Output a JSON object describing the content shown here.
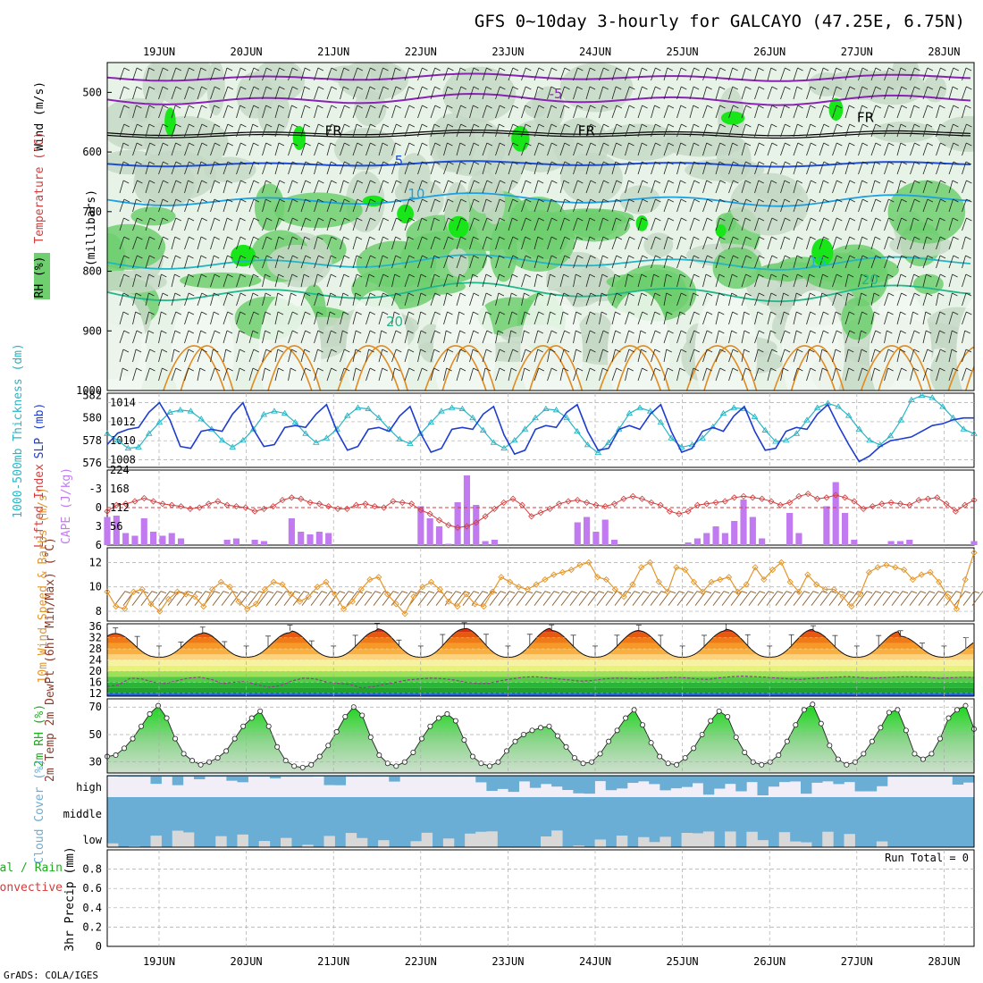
{
  "header": {
    "title": "GFS 0~10day 3-hourly for GALCAYO (47.25E, 6.75N)",
    "credit": "GrADS: COLA/IGES"
  },
  "colors": {
    "rh_light": "#e8f3e8",
    "rh_mid": "#c5d8c5",
    "rh_green": "#6fcf6f",
    "rh_bright": "#19e619",
    "thickness": "#2ab5c5",
    "slp": "#1e3ccf",
    "cape": "#c27af0",
    "lifted": "#d23c3c",
    "wind10": "#e3962c",
    "barb": "#8a5a2a",
    "dewpt": "#9a3a8a",
    "rh2m": "#22cc22",
    "cloud": "#6aaed6",
    "iso_5": "#8a22b5",
    "iso_fr": "#000000",
    "iso_m5": "#1e4fd6",
    "iso_m10": "#1fa0e0",
    "iso_m15": "#22b5c8",
    "iso_m20": "#1fb88a",
    "iso_m25": "#e08a1f"
  },
  "chart_data": [
    {
      "type": "heatmap",
      "name": "upper-air",
      "ylabel": "(millibars)",
      "legend": [
        "RH (%)",
        "Temperature (°C)",
        "Wind (m/s)"
      ],
      "y_ticks": [
        500,
        600,
        700,
        800,
        900,
        1000
      ],
      "ylim": [
        450,
        1000
      ],
      "x_ticks": [
        "19JUN",
        "20JUN",
        "21JUN",
        "22JUN",
        "23JUN",
        "24JUN",
        "25JUN",
        "26JUN",
        "27JUN",
        "28JUN"
      ],
      "isotherm_labels": [
        {
          "text": "-5",
          "x": 4.55,
          "y": 510,
          "color_key": "iso_5"
        },
        {
          "text": "FR",
          "x": 2.0,
          "y": 572,
          "color_key": "iso_fr"
        },
        {
          "text": "FR",
          "x": 4.9,
          "y": 572,
          "color_key": "iso_fr"
        },
        {
          "text": "FR",
          "x": 8.1,
          "y": 550,
          "color_key": "iso_fr"
        },
        {
          "text": "5",
          "x": 2.75,
          "y": 622,
          "color_key": "iso_m5"
        },
        {
          "text": "10",
          "x": 2.95,
          "y": 678,
          "color_key": "iso_m10"
        },
        {
          "text": "15",
          "x": 7.55,
          "y": 792,
          "color_key": "iso_m15"
        },
        {
          "text": "20",
          "x": 2.7,
          "y": 892,
          "color_key": "iso_m20"
        },
        {
          "text": "20",
          "x": 8.15,
          "y": 822,
          "color_key": "iso_m20"
        }
      ]
    },
    {
      "type": "line",
      "name": "thickness-slp",
      "ylabel_left": "1000-500mb Thickness (dm)",
      "ylabel_right": "SLP (mb)",
      "left_ticks": [
        576,
        578,
        580,
        582
      ],
      "right_ticks": [
        1008,
        1010,
        1012,
        1014
      ],
      "left_lim": [
        575.6,
        582.2
      ],
      "right_lim": [
        1007.2,
        1015
      ],
      "thickness": [
        578.6,
        578.0,
        577.3,
        577.4,
        578.6,
        579.6,
        580.5,
        580.7,
        580.6,
        579.9,
        579.0,
        578.0,
        577.4,
        578.0,
        579.0,
        580.3,
        580.6,
        580.4,
        579.6,
        578.6,
        577.8,
        578.2,
        579.0,
        580.2,
        580.9,
        580.8,
        580.0,
        579.0,
        578.1,
        577.7,
        578.6,
        579.6,
        580.6,
        580.9,
        580.8,
        580.0,
        578.9,
        577.8,
        577.3,
        578.0,
        579.0,
        580.0,
        580.8,
        580.7,
        580.0,
        578.8,
        577.6,
        576.9,
        577.8,
        579.0,
        580.4,
        580.9,
        580.6,
        579.6,
        578.2,
        577.4,
        577.6,
        578.2,
        579.2,
        580.4,
        580.9,
        580.8,
        580.1,
        578.9,
        577.9,
        578.0,
        578.6,
        579.8,
        580.9,
        581.3,
        581.0,
        580.2,
        579.0,
        578.0,
        577.6,
        578.4,
        579.8,
        581.6,
        582.0,
        581.8,
        581.0,
        580.0,
        579.0,
        578.6
      ],
      "slp": [
        1009.6,
        1010.8,
        1011.2,
        1011.4,
        1013.0,
        1014.0,
        1012.2,
        1009.4,
        1009.2,
        1011.0,
        1011.2,
        1011.0,
        1012.8,
        1014.0,
        1011.2,
        1009.4,
        1009.6,
        1011.4,
        1011.6,
        1011.4,
        1012.8,
        1013.8,
        1011.0,
        1009.0,
        1009.4,
        1011.2,
        1011.4,
        1011.0,
        1012.6,
        1013.6,
        1010.8,
        1008.8,
        1009.2,
        1011.2,
        1011.4,
        1011.2,
        1012.8,
        1013.6,
        1010.6,
        1008.6,
        1009.0,
        1011.2,
        1011.6,
        1011.4,
        1013.0,
        1013.8,
        1011.0,
        1009.0,
        1009.2,
        1011.2,
        1011.6,
        1011.2,
        1012.8,
        1013.8,
        1011.0,
        1008.8,
        1009.2,
        1011.0,
        1011.4,
        1011.0,
        1012.6,
        1013.6,
        1011.0,
        1009.0,
        1009.2,
        1011.0,
        1011.4,
        1011.2,
        1012.8,
        1013.8,
        1011.6,
        1009.6,
        1007.8,
        1008.4,
        1009.4,
        1010.0,
        1010.2,
        1010.4,
        1011.0,
        1011.6,
        1011.8,
        1012.2,
        1012.4,
        1012.4
      ]
    },
    {
      "type": "bar",
      "name": "cape-lifted",
      "ylabel_left": "Lifted Index",
      "ylabel_right": "CAPE (J/kg)",
      "lifted_ticks": [
        -3,
        0,
        3,
        6
      ],
      "lifted_lim": [
        6,
        -6
      ],
      "cape_ticks": [
        56,
        112,
        168,
        224
      ],
      "cape_lim": [
        0,
        224
      ],
      "cape": [
        84,
        88,
        36,
        28,
        80,
        40,
        28,
        36,
        20,
        0,
        0,
        0,
        0,
        16,
        20,
        0,
        16,
        12,
        0,
        0,
        80,
        40,
        32,
        40,
        36,
        0,
        0,
        0,
        0,
        0,
        0,
        0,
        0,
        0,
        116,
        80,
        56,
        4,
        128,
        208,
        120,
        12,
        16,
        0,
        0,
        0,
        0,
        0,
        0,
        0,
        0,
        68,
        84,
        40,
        76,
        16,
        0,
        0,
        0,
        0,
        0,
        0,
        0,
        8,
        20,
        36,
        56,
        36,
        72,
        136,
        84,
        20,
        0,
        0,
        96,
        36,
        0,
        0,
        116,
        188,
        96,
        16,
        0,
        0,
        0,
        12,
        12,
        16,
        0,
        0,
        0,
        0,
        0,
        0,
        12
      ],
      "lifted": [
        0.6,
        -0.4,
        -0.6,
        -1.0,
        -1.5,
        -1.0,
        -0.6,
        -0.4,
        -0.2,
        0.2,
        0.0,
        -0.6,
        -1.0,
        -0.4,
        -0.2,
        0.0,
        0.6,
        0.2,
        -0.2,
        -1.2,
        -1.6,
        -1.4,
        -0.8,
        -0.6,
        -0.2,
        0.2,
        0.2,
        -0.4,
        -0.6,
        -0.2,
        0.0,
        -1.0,
        -0.8,
        -0.6,
        0.4,
        1.0,
        2.0,
        2.8,
        3.2,
        3.0,
        2.4,
        1.4,
        0.2,
        -0.8,
        -1.4,
        -0.4,
        1.4,
        0.8,
        0.2,
        -0.6,
        -1.0,
        -1.2,
        -0.8,
        -0.4,
        -0.2,
        -0.6,
        -1.4,
        -1.8,
        -1.4,
        -0.8,
        -0.4,
        0.6,
        1.0,
        0.6,
        -0.4,
        -0.6,
        -0.8,
        -1.0,
        -1.6,
        -1.8,
        -1.6,
        -1.4,
        -1.0,
        -0.4,
        -0.8,
        -1.8,
        -2.2,
        -1.4,
        -1.6,
        -2.0,
        -1.6,
        -1.0,
        0.2,
        -0.2,
        -0.6,
        -0.8,
        -0.6,
        -0.4,
        -1.2,
        -1.4,
        -1.6,
        -0.6,
        0.6,
        -0.4,
        -1.2
      ]
    },
    {
      "type": "line",
      "name": "wind10m",
      "ylabel": "10m Wind Speed & Barbs (m/s)",
      "y_ticks": [
        8,
        10,
        12
      ],
      "ylim": [
        7.2,
        13.2
      ],
      "speed": [
        9.6,
        8.4,
        8.2,
        9.6,
        9.8,
        8.6,
        8.0,
        9.0,
        9.6,
        9.4,
        9.2,
        8.4,
        9.8,
        10.4,
        10.0,
        8.8,
        8.2,
        8.6,
        9.8,
        10.4,
        10.2,
        9.4,
        8.8,
        9.2,
        10.0,
        10.4,
        9.4,
        8.2,
        8.8,
        9.8,
        10.6,
        10.8,
        9.4,
        8.6,
        7.8,
        9.2,
        10.0,
        10.4,
        9.8,
        8.8,
        8.4,
        9.4,
        8.6,
        8.4,
        9.6,
        10.8,
        10.4,
        10.0,
        9.8,
        10.2,
        10.6,
        11.0,
        11.2,
        11.4,
        11.8,
        12.0,
        10.8,
        10.6,
        9.8,
        9.2,
        10.2,
        11.6,
        12.0,
        10.4,
        9.6,
        11.6,
        11.4,
        10.4,
        9.6,
        10.4,
        10.6,
        10.8,
        9.6,
        10.2,
        11.6,
        10.6,
        11.4,
        12.0,
        10.4,
        9.6,
        11.0,
        10.2,
        9.8,
        9.8,
        9.2,
        8.4,
        9.4,
        11.2,
        11.6,
        11.8,
        11.6,
        11.4,
        10.6,
        11.0,
        11.2,
        10.4,
        9.2,
        8.2,
        10.6,
        12.8
      ]
    },
    {
      "type": "area",
      "name": "temp2m",
      "ylabel": "2m Temp 2m DewPt (6hr Min/Max) (°C)",
      "y_ticks": [
        12,
        16,
        20,
        24,
        28,
        32,
        36
      ],
      "ylim": [
        11,
        37
      ],
      "temp_min": 25.0,
      "temp_max": [
        33.5,
        33.8,
        34.5,
        35.2,
        35.4,
        34.6,
        34.5,
        35.0,
        34.3,
        32.5
      ],
      "dewpoint": [
        14.5,
        15.0,
        17.5,
        17.2,
        16.0,
        15.5,
        16.5,
        17.5,
        17.8,
        17.0,
        15.5,
        16.0,
        16.2,
        15.0,
        14.2,
        14.8,
        16.5,
        17.5,
        17.2,
        16.0,
        15.6,
        15.2,
        14.0,
        14.4,
        15.2,
        16.0,
        16.8,
        17.2,
        17.5,
        17.3,
        16.8,
        16.0,
        15.5,
        15.6,
        16.5,
        17.2,
        17.8,
        18.0,
        17.6,
        17.2,
        16.8,
        16.4,
        16.6,
        17.2,
        17.5,
        17.4,
        17.2,
        17.3,
        17.5,
        17.8,
        17.6,
        17.2,
        17.0,
        17.6,
        18.0,
        18.2,
        18.0,
        17.8,
        17.5,
        17.2,
        17.0,
        17.4,
        17.6,
        17.8,
        18.0,
        17.8,
        17.4,
        17.6,
        17.8,
        18.0,
        17.9,
        17.8,
        17.4,
        17.6,
        17.8,
        17.7
      ]
    },
    {
      "type": "area",
      "name": "rh2m",
      "ylabel": "2m RH (%)",
      "y_ticks": [
        30,
        50,
        70
      ],
      "ylim": [
        22,
        76
      ],
      "rh": [
        34,
        35,
        40,
        47,
        56,
        65,
        71,
        62,
        47,
        36,
        31,
        28,
        30,
        33,
        38,
        47,
        56,
        62,
        67,
        56,
        41,
        31,
        27,
        26,
        28,
        34,
        42,
        52,
        63,
        70,
        64,
        48,
        35,
        29,
        27,
        30,
        37,
        47,
        56,
        62,
        65,
        60,
        46,
        34,
        29,
        27,
        30,
        38,
        45,
        50,
        53,
        55,
        56,
        49,
        41,
        33,
        29,
        30,
        36,
        45,
        53,
        62,
        68,
        57,
        44,
        34,
        29,
        28,
        33,
        40,
        50,
        60,
        67,
        63,
        48,
        37,
        30,
        28,
        30,
        35,
        45,
        57,
        68,
        72,
        58,
        42,
        32,
        28,
        30,
        36,
        45,
        55,
        66,
        68,
        53,
        36,
        32,
        36,
        47,
        62,
        68,
        71,
        54
      ]
    },
    {
      "type": "bar",
      "name": "cloud-cover",
      "ylabel": "Cloud Cover (%)",
      "levels": [
        "high",
        "middle",
        "low"
      ]
    },
    {
      "type": "bar",
      "name": "precip",
      "ylabel": "3hr Precip (mm)",
      "legend": [
        "Total / Rain",
        "Convective"
      ],
      "y_ticks": [
        0,
        0.2,
        0.4,
        0.6,
        0.8
      ],
      "ylim": [
        0,
        1.0
      ],
      "run_total": "Run Total = 0",
      "values": []
    }
  ]
}
